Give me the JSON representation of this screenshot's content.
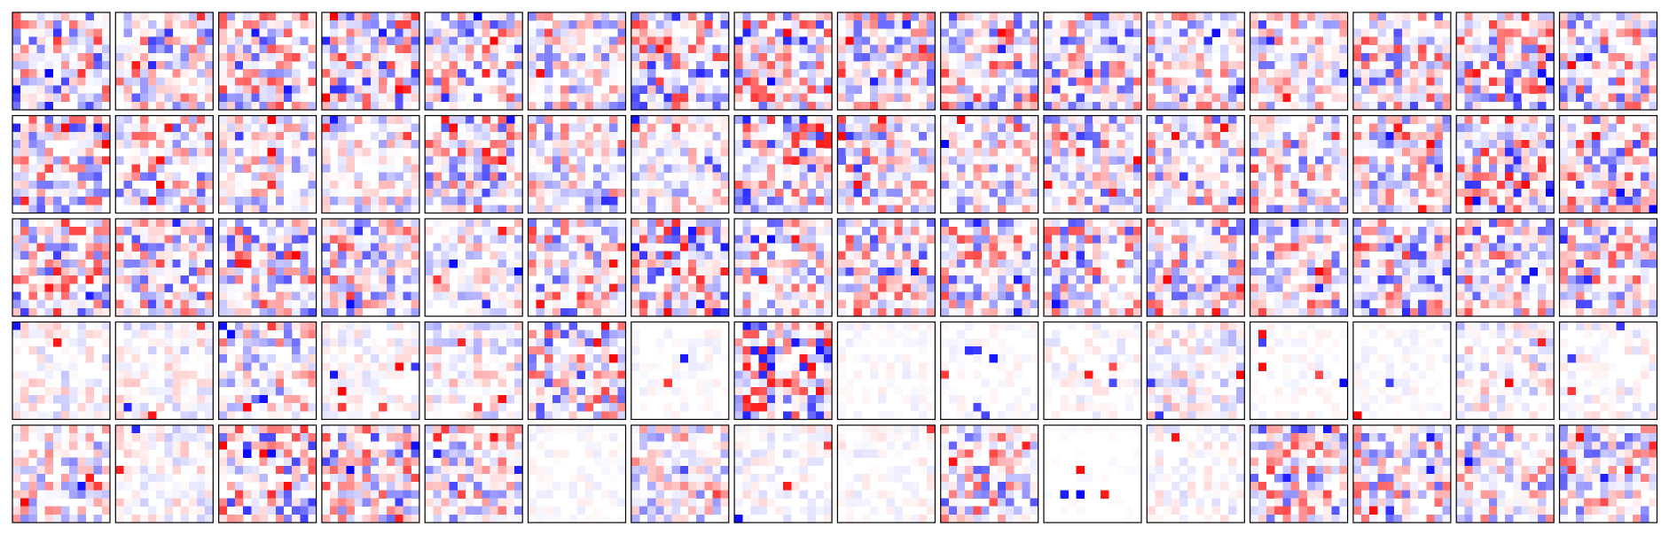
{
  "figure": {
    "rows": 5,
    "cols": 16,
    "grid_resolution": 12,
    "colormap": "bwr",
    "colormap_endpoints": {
      "negative": "#0000ff",
      "zero": "#ffffff",
      "positive": "#ff0000"
    },
    "row_intensity": [
      0.55,
      0.45,
      0.6,
      0.3,
      0.35
    ],
    "panel_intensity": [
      [
        0.5,
        0.4,
        0.45,
        0.55,
        0.45,
        0.35,
        0.5,
        0.55,
        0.4,
        0.5,
        0.45,
        0.4,
        0.35,
        0.45,
        0.5,
        0.45
      ],
      [
        0.4,
        0.4,
        0.3,
        0.25,
        0.45,
        0.35,
        0.25,
        0.55,
        0.4,
        0.35,
        0.4,
        0.4,
        0.4,
        0.35,
        0.55,
        0.45
      ],
      [
        0.5,
        0.45,
        0.45,
        0.4,
        0.25,
        0.5,
        0.6,
        0.4,
        0.45,
        0.45,
        0.45,
        0.4,
        0.45,
        0.5,
        0.45,
        0.45
      ],
      [
        0.15,
        0.15,
        0.35,
        0.1,
        0.2,
        0.45,
        0.05,
        0.6,
        0.05,
        0.05,
        0.08,
        0.2,
        0.05,
        0.05,
        0.2,
        0.1
      ],
      [
        0.3,
        0.15,
        0.5,
        0.45,
        0.35,
        0.05,
        0.3,
        0.1,
        0.08,
        0.45,
        0.02,
        0.1,
        0.45,
        0.4,
        0.35,
        0.4
      ]
    ]
  },
  "icons": {
    "panel": "heatmap-panel"
  }
}
